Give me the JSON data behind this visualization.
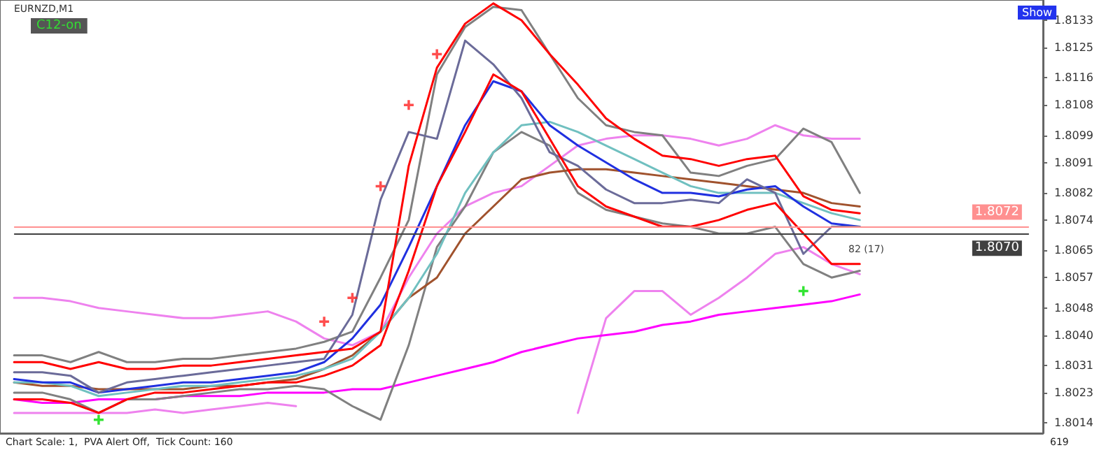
{
  "chart_data": {
    "type": "line",
    "annotations": [
      "EURNZD,M1",
      "C12-on",
      "Show",
      "82 (17)",
      "Chart Scale: 1,  PVA Alert Off,  Tick Count: 160",
      "619"
    ],
    "categories": [
      null,
      null,
      null,
      null,
      null,
      null,
      null,
      null,
      null,
      null,
      null,
      null,
      null,
      null,
      null,
      null,
      null,
      null,
      null,
      null,
      null,
      null,
      null,
      null,
      null,
      null,
      null,
      null,
      null,
      null,
      null,
      null,
      null,
      null,
      null,
      null,
      null
    ],
    "series": [
      {
        "color": "#ee82ee",
        "values": [
          1.8051,
          1.8051,
          1.805,
          1.8048,
          1.8047,
          1.8046,
          1.8045,
          1.8045,
          1.8046,
          1.8047,
          1.8044,
          1.8039,
          1.8037,
          1.8041,
          1.8057,
          1.807,
          1.8078,
          1.8082,
          1.8084,
          1.809,
          1.8096,
          1.8098,
          1.8099,
          1.8099,
          1.8098,
          1.8096,
          1.8098,
          1.8102,
          1.8099,
          1.8098,
          1.8098,
          null,
          null,
          null,
          null,
          null,
          null
        ]
      },
      {
        "color": "#ee82ee",
        "values": [
          1.8017,
          1.8017,
          1.8017,
          1.8017,
          1.8017,
          1.8018,
          1.8017,
          1.8018,
          1.8019,
          1.802,
          1.8019,
          null,
          null,
          null,
          null,
          null,
          null,
          null,
          null,
          null,
          1.8017,
          1.8045,
          1.8053,
          1.8053,
          1.8046,
          1.8051,
          1.8057,
          1.8064,
          1.8066,
          1.8061,
          1.8058,
          null,
          null,
          null,
          null,
          null,
          null
        ]
      },
      {
        "color": "#ff00ff",
        "values": [
          1.8021,
          1.802,
          1.802,
          1.8021,
          1.8021,
          1.8021,
          1.8022,
          1.8022,
          1.8022,
          1.8023,
          1.8023,
          1.8023,
          1.8024,
          1.8024,
          1.8026,
          1.8028,
          1.803,
          1.8032,
          1.8035,
          1.8037,
          1.8039,
          1.804,
          1.8041,
          1.8043,
          1.8044,
          1.8046,
          1.8047,
          1.8048,
          1.8049,
          1.805,
          1.8052,
          null,
          null,
          null,
          null,
          null,
          null
        ]
      },
      {
        "color": "#808080",
        "values": [
          1.8034,
          1.8034,
          1.8032,
          1.8035,
          1.8032,
          1.8032,
          1.8033,
          1.8033,
          1.8034,
          1.8035,
          1.8036,
          1.8038,
          1.8041,
          1.8057,
          1.8074,
          1.8117,
          1.8131,
          1.8137,
          1.8136,
          1.8123,
          1.811,
          1.8102,
          1.81,
          1.8099,
          1.8088,
          1.8087,
          1.809,
          1.8092,
          1.8101,
          1.8097,
          1.8082,
          null,
          null,
          null,
          null,
          null,
          null
        ]
      },
      {
        "color": "#808080",
        "values": [
          1.8023,
          1.8023,
          1.8021,
          1.8017,
          1.8021,
          1.8021,
          1.8022,
          1.8023,
          1.8024,
          1.8024,
          1.8025,
          1.8024,
          1.8019,
          1.8015,
          1.8037,
          1.8066,
          1.8078,
          1.8094,
          1.81,
          1.8096,
          1.8082,
          1.8077,
          1.8075,
          1.8073,
          1.8072,
          1.807,
          1.807,
          1.8072,
          1.8061,
          1.8057,
          1.8059,
          null,
          null,
          null,
          null,
          null,
          null
        ]
      },
      {
        "color": "#a0522d",
        "values": [
          1.8026,
          1.8025,
          1.8025,
          1.8024,
          1.8024,
          1.8024,
          1.8024,
          1.8025,
          1.8025,
          1.8026,
          1.8027,
          1.803,
          1.8034,
          1.8041,
          1.8051,
          1.8057,
          1.807,
          1.8078,
          1.8086,
          1.8088,
          1.8089,
          1.8089,
          1.8088,
          1.8087,
          1.8086,
          1.8085,
          1.8084,
          1.8083,
          1.8082,
          1.8079,
          1.8078,
          null,
          null,
          null,
          null,
          null,
          null
        ]
      },
      {
        "color": "#70c0c0",
        "values": [
          1.8026,
          1.8026,
          1.8025,
          1.8022,
          1.8023,
          1.8024,
          1.8025,
          1.8025,
          1.8026,
          1.8027,
          1.8028,
          1.803,
          1.8033,
          1.8041,
          1.8051,
          1.8064,
          1.8082,
          1.8094,
          1.8102,
          1.8103,
          1.81,
          1.8096,
          1.8092,
          1.8088,
          1.8084,
          1.8082,
          1.8082,
          1.8082,
          1.8079,
          1.8076,
          1.8074,
          null,
          null,
          null,
          null,
          null,
          null
        ]
      },
      {
        "color": "#2030e0",
        "values": [
          1.8027,
          1.8026,
          1.8026,
          1.8023,
          1.8024,
          1.8025,
          1.8026,
          1.8026,
          1.8027,
          1.8028,
          1.8029,
          1.8032,
          1.8039,
          1.8049,
          1.8066,
          1.8084,
          1.8102,
          1.8115,
          1.8112,
          1.8102,
          1.8096,
          1.8091,
          1.8086,
          1.8082,
          1.8082,
          1.8081,
          1.8083,
          1.8084,
          1.8078,
          1.8073,
          1.8072,
          null,
          null,
          null,
          null,
          null,
          null
        ]
      },
      {
        "color": "#6b6b99",
        "values": [
          1.8029,
          1.8029,
          1.8028,
          1.8023,
          1.8026,
          1.8027,
          1.8028,
          1.8029,
          1.803,
          1.8031,
          1.8032,
          1.8033,
          1.8046,
          1.808,
          1.81,
          1.8098,
          1.8127,
          1.812,
          1.811,
          1.8094,
          1.809,
          1.8083,
          1.8079,
          1.8079,
          1.808,
          1.8079,
          1.8086,
          1.8082,
          1.8064,
          1.8072,
          1.8072,
          null,
          null,
          null,
          null,
          null,
          null
        ]
      },
      {
        "color": "#ff0000",
        "values": [
          1.8032,
          1.8032,
          1.803,
          1.8032,
          1.803,
          1.803,
          1.8031,
          1.8031,
          1.8032,
          1.8033,
          1.8034,
          1.8035,
          1.8036,
          1.8041,
          1.809,
          1.8119,
          1.8132,
          1.8138,
          1.8133,
          1.8123,
          1.8114,
          1.8104,
          1.8098,
          1.8093,
          1.8092,
          1.809,
          1.8092,
          1.8093,
          1.8081,
          1.8077,
          1.8076,
          null,
          null,
          null,
          null,
          null,
          null
        ]
      },
      {
        "color": "#ff0000",
        "values": [
          1.8021,
          1.8021,
          1.802,
          1.8017,
          1.8021,
          1.8023,
          1.8023,
          1.8024,
          1.8025,
          1.8026,
          1.8026,
          1.8028,
          1.8031,
          1.8037,
          1.8059,
          1.8084,
          1.81,
          1.8117,
          1.8112,
          1.8098,
          1.8084,
          1.8078,
          1.8075,
          1.8072,
          1.8072,
          1.8074,
          1.8077,
          1.8079,
          1.807,
          1.8061,
          1.8061,
          null,
          null,
          null,
          null,
          null,
          null
        ]
      },
      {
        "type": "scatter",
        "marker": "cross",
        "color": "#ff2020",
        "values": [
          null,
          null,
          null,
          null,
          null,
          null,
          null,
          null,
          null,
          null,
          null,
          1.8044,
          1.8051,
          1.8084,
          1.8108,
          1.8123,
          null,
          null,
          null,
          null,
          null,
          null,
          null,
          null,
          null,
          null,
          null,
          null,
          null,
          null,
          null,
          null,
          null,
          null,
          null,
          null,
          null
        ]
      },
      {
        "type": "scatter",
        "marker": "cross",
        "color": "#00dd00",
        "values": [
          null,
          null,
          null,
          1.8015,
          null,
          null,
          null,
          null,
          null,
          null,
          null,
          null,
          null,
          null,
          null,
          null,
          null,
          null,
          null,
          null,
          null,
          null,
          null,
          null,
          null,
          null,
          null,
          null,
          1.8053,
          null,
          null,
          null,
          null,
          null,
          null,
          null,
          null
        ]
      }
    ],
    "ylim": [
      1.8011,
      1.8139
    ],
    "yticks": [
      1.8014,
      1.8023,
      1.8031,
      {
        "value": 1.804,
        "label": "1.8040"
      },
      1.8048,
      1.8057,
      1.8065,
      1.8074,
      1.8082,
      1.8091,
      1.8099,
      1.8108,
      1.8116,
      1.8125,
      1.8133
    ],
    "ref_lines": [
      {
        "axis": "y",
        "value": 1.8072,
        "label": "1.8072",
        "color": "#ff9090"
      },
      {
        "axis": "y",
        "value": 1.807,
        "label": "1.8070",
        "color": "#404040"
      }
    ],
    "marker": "none",
    "line_style": "solid",
    "grid": false,
    "tick_labels": "y"
  }
}
